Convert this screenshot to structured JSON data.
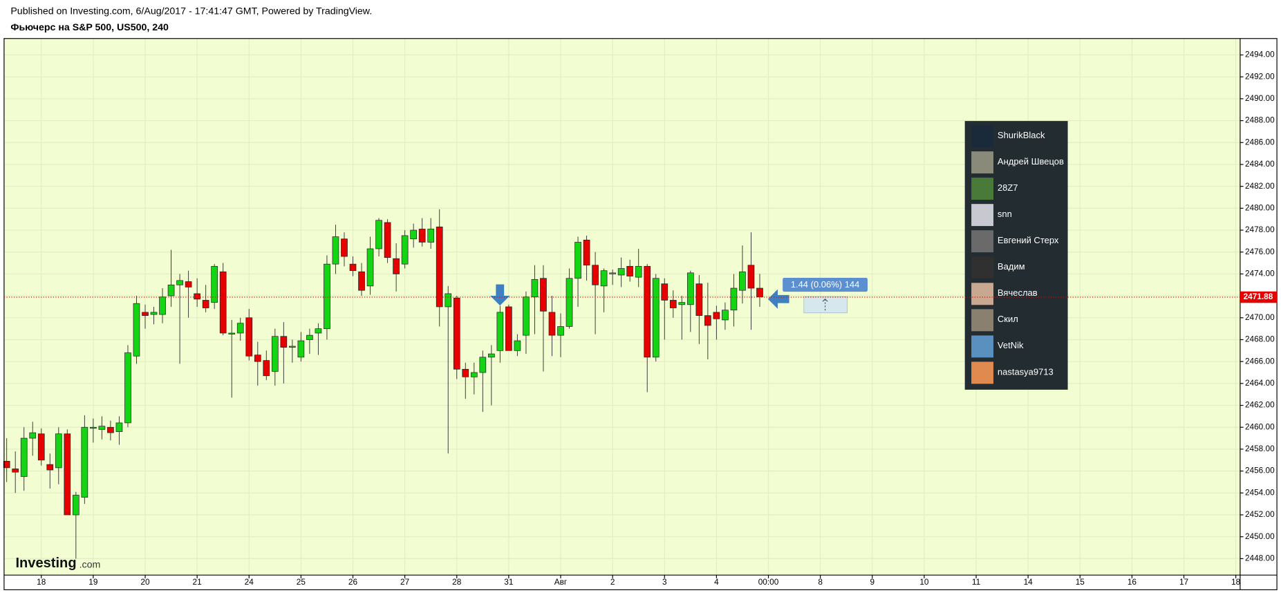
{
  "header": {
    "published": "Published on Investing.com, 6/Aug/2017 - 17:41:47 GMT, Powered by TradingView.",
    "title": "Фьючерс на S&P 500, US500, 240"
  },
  "chart_data": {
    "type": "candlestick",
    "x": [
      0,
      1,
      2,
      3,
      4,
      5,
      6,
      7,
      8,
      9,
      10,
      11,
      12,
      13,
      14,
      15,
      16,
      17,
      18,
      19,
      20,
      21,
      22,
      23,
      24,
      25,
      26,
      27,
      28,
      29,
      30,
      31,
      32,
      33,
      34,
      35,
      36,
      37,
      38,
      39,
      40,
      41,
      42,
      43,
      44,
      45,
      46,
      47,
      48,
      49,
      50,
      51,
      52,
      53,
      54,
      55,
      56,
      57,
      58,
      59,
      60,
      61,
      62,
      63,
      64,
      65,
      66,
      67,
      68,
      69,
      70,
      71,
      72,
      73,
      74,
      75,
      76,
      77,
      78,
      79,
      80,
      81,
      82,
      83,
      84,
      85,
      86,
      87
    ],
    "open": [
      2456.9,
      2456.2,
      2455.5,
      2459.0,
      2459.4,
      2456.6,
      2456.3,
      2459.4,
      2452.0,
      2453.6,
      2459.9,
      2459.8,
      2460.0,
      2459.6,
      2460.4,
      2466.5,
      2470.5,
      2470.3,
      2470.3,
      2472.0,
      2473.0,
      2473.3,
      2472.2,
      2471.6,
      2471.4,
      2474.2,
      2468.5,
      2468.6,
      2470.0,
      2466.6,
      2466.1,
      2465.1,
      2468.3,
      2467.3,
      2466.4,
      2468.0,
      2468.6,
      2469.0,
      2474.9,
      2477.2,
      2474.9,
      2474.2,
      2472.9,
      2476.3,
      2478.7,
      2475.4,
      2474.9,
      2477.2,
      2478.1,
      2476.9,
      2478.3,
      2471.0,
      2471.8,
      2465.3,
      2464.6,
      2465.0,
      2466.4,
      2467.0,
      2471.0,
      2467.0,
      2468.4,
      2471.9,
      2473.6,
      2470.5,
      2468.4,
      2469.2,
      2473.6,
      2477.1,
      2474.8,
      2472.9,
      2474.0,
      2473.9,
      2474.7,
      2473.7,
      2474.7,
      2466.4,
      2473.1,
      2471.6,
      2471.2,
      2471.2,
      2473.1,
      2470.2,
      2470.5,
      2469.8,
      2470.7,
      2472.5,
      2474.8,
      2472.7
    ],
    "high": [
      2459.0,
      2457.8,
      2460.0,
      2460.5,
      2459.9,
      2457.6,
      2460.0,
      2459.8,
      2454.1,
      2461.1,
      2460.8,
      2461.0,
      2460.6,
      2461.0,
      2467.5,
      2472.0,
      2471.2,
      2471.0,
      2472.7,
      2476.2,
      2474.0,
      2474.3,
      2473.6,
      2473.0,
      2474.9,
      2475.0,
      2469.8,
      2470.0,
      2470.8,
      2467.8,
      2467.0,
      2469.0,
      2469.6,
      2468.0,
      2468.7,
      2469.0,
      2469.5,
      2475.7,
      2478.5,
      2477.8,
      2475.6,
      2475.0,
      2477.4,
      2479.1,
      2479.0,
      2476.8,
      2478.0,
      2478.6,
      2479.1,
      2479.1,
      2479.9,
      2472.9,
      2472.0,
      2465.9,
      2465.9,
      2467.0,
      2467.5,
      2471.1,
      2471.2,
      2468.5,
      2472.4,
      2474.8,
      2474.8,
      2472.0,
      2470.4,
      2474.5,
      2477.4,
      2477.5,
      2476.0,
      2474.5,
      2474.4,
      2475.5,
      2475.3,
      2476.3,
      2474.9,
      2474.0,
      2473.6,
      2472.5,
      2472.0,
      2474.3,
      2473.9,
      2473.2,
      2471.1,
      2471.4,
      2474.0,
      2476.6,
      2477.8,
      2474.0
    ],
    "low": [
      2455.0,
      2454.0,
      2454.2,
      2457.4,
      2456.5,
      2454.4,
      2454.8,
      2452.0,
      2448.0,
      2453.0,
      2458.6,
      2458.9,
      2458.8,
      2458.4,
      2460.0,
      2465.8,
      2469.0,
      2469.4,
      2469.5,
      2471.0,
      2465.8,
      2470.0,
      2471.0,
      2470.5,
      2470.8,
      2468.4,
      2462.7,
      2467.9,
      2466.1,
      2463.8,
      2464.3,
      2463.8,
      2464.0,
      2465.9,
      2466.0,
      2466.7,
      2466.6,
      2468.0,
      2474.0,
      2474.7,
      2473.8,
      2472.0,
      2472.1,
      2475.6,
      2475.0,
      2472.4,
      2474.5,
      2476.4,
      2476.5,
      2476.3,
      2469.2,
      2457.6,
      2464.4,
      2462.6,
      2463.0,
      2461.4,
      2462.0,
      2465.9,
      2467.0,
      2466.5,
      2466.7,
      2468.5,
      2465.1,
      2466.5,
      2466.4,
      2469.0,
      2471.0,
      2473.4,
      2468.5,
      2470.5,
      2473.0,
      2472.8,
      2473.3,
      2472.8,
      2463.2,
      2466.0,
      2468.0,
      2470.0,
      2468.0,
      2468.7,
      2467.6,
      2466.2,
      2468.0,
      2468.9,
      2469.2,
      2471.3,
      2468.9,
      2471.0
    ],
    "close": [
      2456.3,
      2455.9,
      2459.0,
      2459.5,
      2457.0,
      2456.1,
      2459.4,
      2452.0,
      2453.8,
      2460.0,
      2460.0,
      2460.1,
      2459.5,
      2460.4,
      2466.8,
      2471.3,
      2470.2,
      2470.5,
      2471.9,
      2473.0,
      2473.4,
      2472.8,
      2471.7,
      2470.9,
      2474.7,
      2468.6,
      2468.6,
      2469.5,
      2466.5,
      2466.0,
      2464.7,
      2468.3,
      2467.3,
      2467.4,
      2467.9,
      2468.4,
      2469.0,
      2474.9,
      2477.4,
      2475.6,
      2474.3,
      2472.5,
      2476.3,
      2478.9,
      2475.5,
      2474.0,
      2477.5,
      2478.0,
      2476.9,
      2478.1,
      2471.0,
      2472.2,
      2465.3,
      2464.6,
      2465.0,
      2466.4,
      2466.7,
      2470.5,
      2467.0,
      2467.9,
      2471.9,
      2473.5,
      2470.6,
      2468.4,
      2469.2,
      2473.6,
      2476.9,
      2474.8,
      2473.0,
      2474.3,
      2474.1,
      2474.5,
      2473.8,
      2474.7,
      2466.4,
      2473.6,
      2471.6,
      2470.9,
      2471.4,
      2474.1,
      2470.2,
      2469.3,
      2469.9,
      2470.7,
      2472.7,
      2474.2,
      2472.7,
      2471.9
    ],
    "up_color": "#14d414",
    "down_color": "#e60000",
    "last_price": 2471.88,
    "last_price_color": "#e60000",
    "xlim": [
      -0.3,
      142.5
    ],
    "xticks": [
      {
        "value": 4,
        "label": "18"
      },
      {
        "value": 10,
        "label": "19"
      },
      {
        "value": 16,
        "label": "20"
      },
      {
        "value": 22,
        "label": "21"
      },
      {
        "value": 28,
        "label": "24"
      },
      {
        "value": 34,
        "label": "25"
      },
      {
        "value": 40,
        "label": "26"
      },
      {
        "value": 46,
        "label": "27"
      },
      {
        "value": 52,
        "label": "28"
      },
      {
        "value": 58,
        "label": "31"
      },
      {
        "value": 64,
        "label": "Авг"
      },
      {
        "value": 70,
        "label": "2"
      },
      {
        "value": 76,
        "label": "3"
      },
      {
        "value": 82,
        "label": "4"
      },
      {
        "value": 88,
        "label": "00:00"
      },
      {
        "value": 94,
        "label": "8"
      },
      {
        "value": 100,
        "label": "9"
      },
      {
        "value": 106,
        "label": "10"
      },
      {
        "value": 112,
        "label": "11"
      },
      {
        "value": 118,
        "label": "14"
      },
      {
        "value": 124,
        "label": "15"
      },
      {
        "value": 130,
        "label": "16"
      },
      {
        "value": 136,
        "label": "17"
      },
      {
        "value": 142,
        "label": "18"
      }
    ],
    "ylim": [
      2446.5,
      2495.5
    ],
    "yticks": [
      {
        "value": 2448,
        "label": "2448.00"
      },
      {
        "value": 2450,
        "label": "2450.00"
      },
      {
        "value": 2452,
        "label": "2452.00"
      },
      {
        "value": 2454,
        "label": "2454.00"
      },
      {
        "value": 2456,
        "label": "2456.00"
      },
      {
        "value": 2458,
        "label": "2458.00"
      },
      {
        "value": 2460,
        "label": "2460.00"
      },
      {
        "value": 2462,
        "label": "2462.00"
      },
      {
        "value": 2464,
        "label": "2464.00"
      },
      {
        "value": 2466,
        "label": "2466.00"
      },
      {
        "value": 2468,
        "label": "2468.00"
      },
      {
        "value": 2470,
        "label": "2470.00"
      },
      {
        "value": 2472,
        "label": "2472.00"
      },
      {
        "value": 2474,
        "label": "2474.00"
      },
      {
        "value": 2476,
        "label": "2476.00"
      },
      {
        "value": 2478,
        "label": "2478.00"
      },
      {
        "value": 2480,
        "label": "2480.00"
      },
      {
        "value": 2482,
        "label": "2482.00"
      },
      {
        "value": 2484,
        "label": "2484.00"
      },
      {
        "value": 2486,
        "label": "2486.00"
      },
      {
        "value": 2488,
        "label": "2488.00"
      },
      {
        "value": 2490,
        "label": "2490.00"
      },
      {
        "value": 2492,
        "label": "2492.00"
      },
      {
        "value": 2494,
        "label": "2494.00"
      }
    ],
    "grid": true,
    "measure_label": "1.44 (0.06%) 144"
  },
  "users": [
    "ShurikBlack",
    "Андрей Швецов",
    "28Z7",
    "snn",
    "Евгений Стерх",
    "Вадим",
    "Вячеслав",
    "Скил",
    "VetNik",
    "nastasya9713"
  ],
  "logo": {
    "brand": "Investing",
    "suffix": ".com"
  }
}
